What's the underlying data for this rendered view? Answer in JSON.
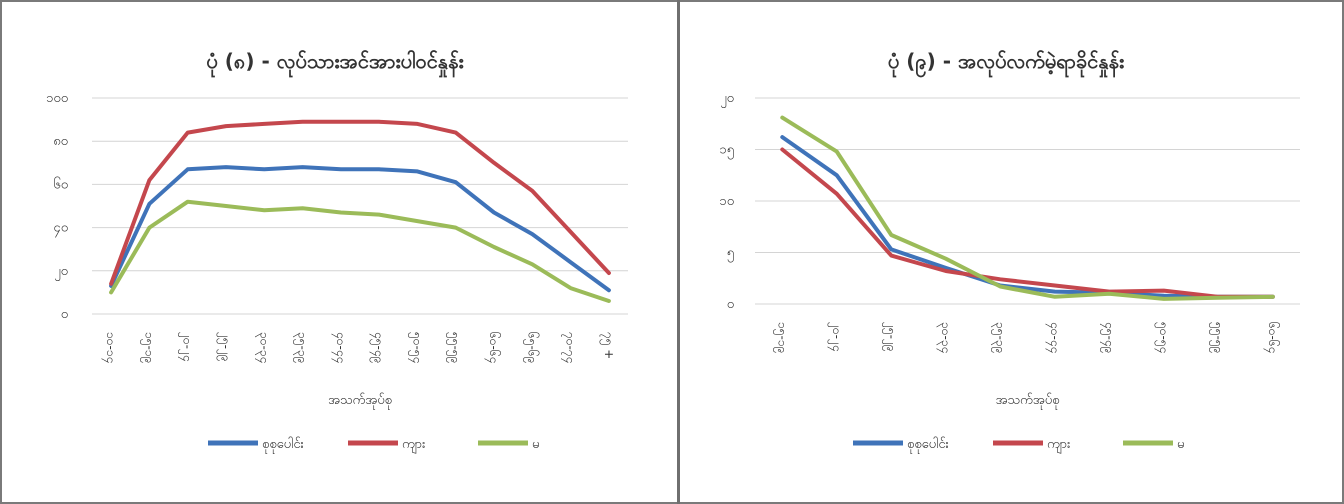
{
  "chart_data": [
    {
      "type": "line",
      "title": "ပုံ (၈) - လုပ်သားအင်အားပါဝင်နှုန်း",
      "xlabel": "အသက်အုပ်စု",
      "ylabel": "",
      "ylim": [
        0,
        100
      ],
      "yticks": [
        "၀",
        "၂၀",
        "၄၀",
        "၆၀",
        "၈၀",
        "၁၀၀"
      ],
      "ytick_values": [
        0,
        20,
        40,
        60,
        80,
        100
      ],
      "grid": true,
      "legend_position": "bottom",
      "categories": [
        "၁၀-၁၄",
        "၁၅-၁၉",
        "၂၀-၂၄",
        "၂၅-၂၉",
        "၃၀-၃၄",
        "၃၅-၃၉",
        "၄၀-၄၄",
        "၄၅-၄၉",
        "၅၀-၅၄",
        "၅၅-၅၉",
        "၆၀-၆၄",
        "၆၅-၆၉",
        "၇၀-၇၄",
        "၇၅ +"
      ],
      "series": [
        {
          "name": "စုစုပေါင်း",
          "color": "#3f73b9",
          "values": [
            13,
            51,
            67,
            68,
            67,
            68,
            67,
            67,
            66,
            61,
            47,
            37,
            24,
            11
          ]
        },
        {
          "name": "ကျား",
          "color": "#c4474d",
          "values": [
            14,
            62,
            84,
            87,
            88,
            89,
            89,
            89,
            88,
            84,
            70,
            57,
            38,
            19
          ]
        },
        {
          "name": "မ",
          "color": "#9bbb59",
          "values": [
            10,
            40,
            52,
            50,
            48,
            49,
            47,
            46,
            43,
            40,
            31,
            23,
            12,
            6
          ]
        }
      ]
    },
    {
      "type": "line",
      "title": "ပုံ (၉) - အလုပ်လက်မဲ့ရာခိုင်နှုန်း",
      "xlabel": "အသက်အုပ်စု",
      "ylabel": "",
      "ylim": [
        0,
        20
      ],
      "yticks": [
        "၀",
        "၅",
        "၁၀",
        "၁၅",
        "၂၀"
      ],
      "ytick_values": [
        0,
        5,
        10,
        15,
        20
      ],
      "grid": true,
      "legend_position": "bottom",
      "categories": [
        "၁၅-၁၉",
        "၂၀-၂၄",
        "၂၅-၂၉",
        "၃၀-၃၄",
        "၃၅-၃၉",
        "၄၀-၄၄",
        "၄၅-၄၉",
        "၅၀-၅၄",
        "၅၅-၅၉",
        "၆၀-၆၄"
      ],
      "series": [
        {
          "name": "စုစုပေါင်း",
          "color": "#3f73b9",
          "values": [
            16.2,
            12.5,
            5.3,
            3.5,
            1.8,
            1.2,
            1.1,
            0.8,
            0.7,
            0.7
          ]
        },
        {
          "name": "ကျား",
          "color": "#c4474d",
          "values": [
            15.0,
            10.7,
            4.7,
            3.2,
            2.4,
            1.8,
            1.2,
            1.3,
            0.7,
            0.7
          ]
        },
        {
          "name": "မ",
          "color": "#9bbb59",
          "values": [
            18.1,
            14.8,
            6.7,
            4.4,
            1.7,
            0.7,
            1.0,
            0.5,
            0.6,
            0.7
          ]
        }
      ]
    }
  ]
}
